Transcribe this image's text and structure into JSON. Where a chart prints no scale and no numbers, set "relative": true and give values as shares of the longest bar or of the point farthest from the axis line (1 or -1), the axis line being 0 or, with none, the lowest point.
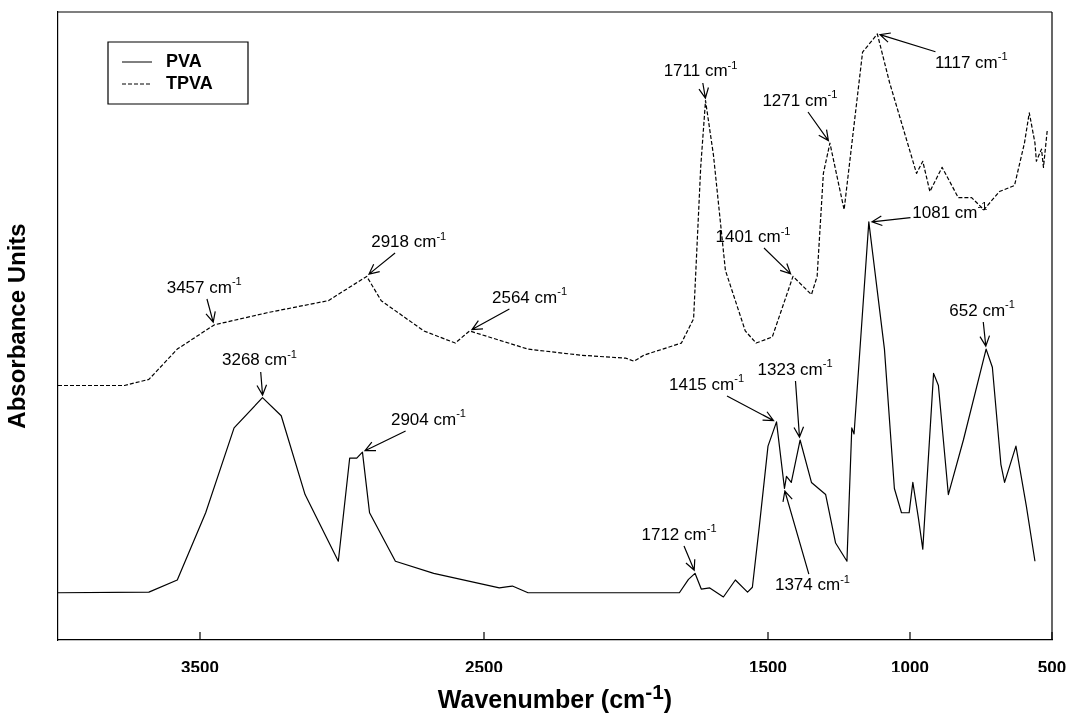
{
  "chart_data": {
    "type": "line",
    "ylabel": "Absorbance Units",
    "xlabel": "Wavenumber (cm$^{-1}$)",
    "xlim": [
      4000,
      500
    ],
    "xticks": [
      3500,
      2500,
      1500,
      1000,
      500
    ],
    "relative": true,
    "legend": "top left",
    "series": [
      {
        "name": "PVA",
        "color": "#000000",
        "line_style": "solid",
        "x": [
          4000,
          3680,
          3580,
          3480,
          3380,
          3280,
          3214,
          3130,
          3013,
          2973,
          2948,
          2928,
          2903,
          2812,
          2677,
          2446,
          2400,
          2345,
          2000,
          1812,
          1780,
          1757,
          1735,
          1705,
          1657,
          1615,
          1572,
          1555,
          1530,
          1500,
          1470,
          1442,
          1435,
          1418,
          1387,
          1347,
          1297,
          1262,
          1222,
          1205,
          1197,
          1145,
          1090,
          1055,
          1030,
          1003,
          990,
          970,
          955,
          917,
          900,
          865,
          812,
          732,
          710,
          680,
          667,
          627,
          590,
          560
        ],
        "values": [
          0.078,
          0.079,
          0.099,
          0.21,
          0.35,
          0.4,
          0.37,
          0.24,
          0.13,
          0.3,
          0.3,
          0.31,
          0.21,
          0.13,
          0.11,
          0.086,
          0.089,
          0.078,
          0.078,
          0.078,
          0.1,
          0.11,
          0.084,
          0.086,
          0.071,
          0.099,
          0.079,
          0.087,
          0.19,
          0.32,
          0.36,
          0.25,
          0.27,
          0.26,
          0.33,
          0.26,
          0.24,
          0.16,
          0.13,
          0.35,
          0.34,
          0.69,
          0.48,
          0.25,
          0.21,
          0.21,
          0.26,
          0.2,
          0.15,
          0.44,
          0.42,
          0.24,
          0.33,
          0.48,
          0.45,
          0.29,
          0.26,
          0.32,
          0.22,
          0.13
        ]
      },
      {
        "name": "TPVA",
        "color": "#000000",
        "line_style": "dashed",
        "x": [
          4000,
          3766,
          3680,
          3580,
          3450,
          3264,
          3048,
          2913,
          2862,
          2712,
          2601,
          2551,
          2345,
          2160,
          2000,
          1972,
          1937,
          1805,
          1762,
          1737,
          1720,
          1692,
          1650,
          1580,
          1542,
          1485,
          1412,
          1347,
          1327,
          1305,
          1282,
          1232,
          1167,
          1115,
          1072,
          977,
          955,
          930,
          887,
          830,
          783,
          740,
          685,
          632,
          597,
          580,
          560,
          555,
          537,
          530,
          517
        ],
        "values": [
          0.42,
          0.42,
          0.43,
          0.48,
          0.52,
          0.54,
          0.56,
          0.6,
          0.56,
          0.51,
          0.49,
          0.51,
          0.48,
          0.47,
          0.465,
          0.46,
          0.47,
          0.49,
          0.53,
          0.78,
          0.89,
          0.8,
          0.61,
          0.51,
          0.49,
          0.5,
          0.6,
          0.57,
          0.6,
          0.77,
          0.82,
          0.71,
          0.97,
          1,
          0.92,
          0.77,
          0.79,
          0.74,
          0.78,
          0.73,
          0.73,
          0.71,
          0.74,
          0.75,
          0.82,
          0.87,
          0.82,
          0.79,
          0.81,
          0.78,
          0.84
        ]
      }
    ],
    "annotations": [
      {
        "text": "3457 cm$^{-1}$",
        "x": 3450,
        "y": 0.52
      },
      {
        "text": "2918 cm$^{-1}$",
        "x": 2913,
        "y": 0.6
      },
      {
        "text": "2564 cm$^{-1}$",
        "x": 2551,
        "y": 0.51
      },
      {
        "text": "3268 cm$^{-1}$",
        "x": 3280,
        "y": 0.4
      },
      {
        "text": "2904 cm$^{-1}$",
        "x": 2928,
        "y": 0.31
      },
      {
        "text": "1711 cm$^{-1}$",
        "x": 1720,
        "y": 0.89
      },
      {
        "text": "1401 cm$^{-1}$",
        "x": 1412,
        "y": 0.6
      },
      {
        "text": "1271 cm$^{-1}$",
        "x": 1282,
        "y": 0.82
      },
      {
        "text": "1117 cm$^{-1}$",
        "x": 1115,
        "y": 1
      },
      {
        "text": "1081 cm$^{-1}$",
        "x": 1145,
        "y": 0.69
      },
      {
        "text": "1712 cm$^{-1}$",
        "x": 1757,
        "y": 0.11
      },
      {
        "text": "1415 cm$^{-1}$",
        "x": 1470,
        "y": 0.36
      },
      {
        "text": "1374 cm$^{-1}$",
        "x": 1442,
        "y": 0.25
      },
      {
        "text": "1323 cm$^{-1}$",
        "x": 1387,
        "y": 0.33
      },
      {
        "text": "652 cm$^{-1}$",
        "x": 732,
        "y": 0.48
      }
    ]
  }
}
